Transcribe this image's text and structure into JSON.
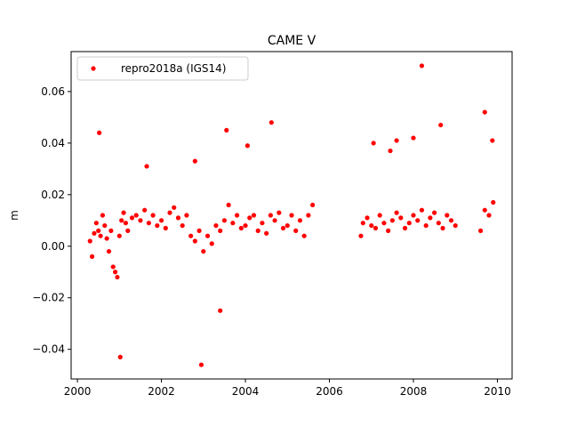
{
  "chart_data": {
    "type": "scatter",
    "title": "CAME V",
    "xlabel": "",
    "ylabel": "m",
    "xlim": [
      1999.85,
      2010.35
    ],
    "ylim": [
      -0.0515,
      0.0755
    ],
    "xticks": [
      2000,
      2002,
      2004,
      2006,
      2008,
      2010
    ],
    "xtick_labels": [
      "2000",
      "2002",
      "2004",
      "2006",
      "2008",
      "2010"
    ],
    "yticks": [
      -0.04,
      -0.02,
      0.0,
      0.02,
      0.04,
      0.06
    ],
    "ytick_labels": [
      "−0.04",
      "−0.02",
      "0.00",
      "0.02",
      "0.04",
      "0.06"
    ],
    "grid": false,
    "legend_position": "top-left",
    "series": [
      {
        "name": "repro2018a (IGS14)",
        "color": "#ff0000",
        "x": [
          2000.3,
          2000.35,
          2000.4,
          2000.45,
          2000.5,
          2000.55,
          2000.6,
          2000.65,
          2000.7,
          2000.75,
          2000.8,
          2000.85,
          2000.9,
          2000.95,
          2001.0,
          2001.05,
          2001.1,
          2001.15,
          2001.2,
          2001.3,
          2001.4,
          2001.5,
          2001.6,
          2001.7,
          2001.8,
          2001.9,
          2002.0,
          2002.1,
          2002.2,
          2002.3,
          2002.4,
          2002.5,
          2002.6,
          2002.7,
          2002.8,
          2002.9,
          2003.0,
          2003.1,
          2003.2,
          2003.3,
          2003.4,
          2003.5,
          2003.6,
          2003.7,
          2003.8,
          2003.9,
          2004.0,
          2004.1,
          2004.2,
          2004.3,
          2004.4,
          2004.5,
          2004.6,
          2004.7,
          2004.8,
          2004.9,
          2005.0,
          2005.1,
          2005.2,
          2005.3,
          2005.4,
          2005.5,
          2005.6,
          2006.75,
          2006.8,
          2006.9,
          2007.0,
          2007.1,
          2007.2,
          2007.3,
          2007.4,
          2007.5,
          2007.6,
          2007.7,
          2007.8,
          2007.9,
          2008.0,
          2008.1,
          2008.2,
          2008.3,
          2008.4,
          2008.5,
          2008.6,
          2008.7,
          2008.8,
          2008.9,
          2009.0,
          2009.6,
          2009.7,
          2009.8,
          2009.9,
          2000.52,
          2001.02,
          2002.95,
          2003.4,
          2003.55,
          2004.62,
          2008.2,
          2008.65,
          2009.7,
          2009.88,
          2007.05,
          2007.6,
          2008.0,
          2001.65,
          2002.8,
          2004.05,
          2007.45
        ],
        "y": [
          0.002,
          -0.004,
          0.005,
          0.009,
          0.006,
          0.004,
          0.012,
          0.008,
          0.003,
          -0.002,
          0.006,
          -0.008,
          -0.01,
          -0.012,
          0.004,
          0.01,
          0.013,
          0.009,
          0.006,
          0.011,
          0.012,
          0.01,
          0.014,
          0.009,
          0.012,
          0.008,
          0.01,
          0.007,
          0.013,
          0.015,
          0.011,
          0.008,
          0.012,
          0.004,
          0.002,
          0.006,
          -0.002,
          0.004,
          0.001,
          0.008,
          0.006,
          0.01,
          0.016,
          0.009,
          0.012,
          0.007,
          0.008,
          0.011,
          0.012,
          0.006,
          0.009,
          0.005,
          0.012,
          0.01,
          0.013,
          0.007,
          0.008,
          0.012,
          0.006,
          0.01,
          0.004,
          0.012,
          0.016,
          0.004,
          0.009,
          0.011,
          0.008,
          0.007,
          0.012,
          0.009,
          0.006,
          0.01,
          0.013,
          0.011,
          0.007,
          0.009,
          0.012,
          0.01,
          0.014,
          0.008,
          0.011,
          0.013,
          0.009,
          0.007,
          0.012,
          0.01,
          0.008,
          0.006,
          0.014,
          0.012,
          0.017,
          0.044,
          -0.043,
          -0.046,
          -0.025,
          0.045,
          0.048,
          0.07,
          0.047,
          0.052,
          0.041,
          0.04,
          0.041,
          0.042,
          0.031,
          0.033,
          0.039,
          0.037
        ]
      }
    ]
  }
}
